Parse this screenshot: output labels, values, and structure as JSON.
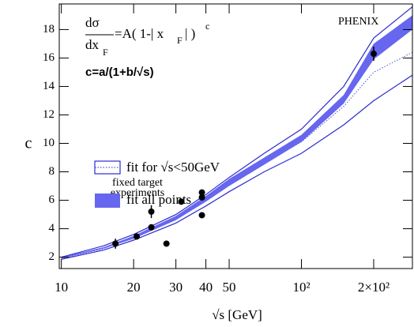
{
  "chart_data": {
    "type": "scatter",
    "log_x": true,
    "xlim": [
      9.8,
      290
    ],
    "ylim": [
      1.2,
      19.8
    ],
    "xticks": [
      10,
      20,
      30,
      40,
      50,
      {
        "value": 100,
        "label": "10²"
      },
      {
        "value": 200,
        "label": "2×10²"
      }
    ],
    "yticks": [
      2,
      4,
      6,
      8,
      10,
      12,
      14,
      16,
      18
    ],
    "x_label": "√s [GeV]",
    "y_label": "c",
    "formula": {
      "numerator": "dσ",
      "denominator": "dx",
      "denominator_sub": "F",
      "rhs": "=A( 1-| x",
      "rhs_sub": "F",
      "rhs_end": "| )",
      "exponent": "c"
    },
    "parametrization": "c=a/(1+b/√s)",
    "annotations": [
      "fixed target",
      "experiments",
      "PHENIX"
    ],
    "fits": [
      {
        "name": "fit for √s<50GeV",
        "style": "outline",
        "color": "#2b2bd0",
        "x": [
          10,
          15,
          20,
          30,
          40,
          50,
          70,
          100,
          150,
          200,
          290
        ],
        "low": [
          1.85,
          2.5,
          3.2,
          4.4,
          5.6,
          6.6,
          8.0,
          9.3,
          11.3,
          13.0,
          14.8
        ],
        "values": [
          1.9,
          2.6,
          3.4,
          4.7,
          6.0,
          7.1,
          8.6,
          10.1,
          12.6,
          15.0,
          16.4
        ],
        "high": [
          2.0,
          2.8,
          3.6,
          5.0,
          6.4,
          7.6,
          9.3,
          11.0,
          14.0,
          17.4,
          19.6
        ]
      },
      {
        "name": "fit all points",
        "style": "band",
        "color": "#6666ee",
        "x": [
          10,
          15,
          20,
          30,
          40,
          50,
          70,
          100,
          150,
          200,
          290
        ],
        "low": [
          1.9,
          2.6,
          3.3,
          4.6,
          5.9,
          7.0,
          8.5,
          10.1,
          12.8,
          15.9,
          18.0
        ],
        "high": [
          2.0,
          2.7,
          3.5,
          4.9,
          6.3,
          7.5,
          9.0,
          10.6,
          13.4,
          17.0,
          19.0
        ]
      }
    ],
    "points": {
      "color": "#000000",
      "x": [
        16.8,
        20.6,
        23.7,
        23.7,
        27.4,
        31.6,
        38.5,
        38.5,
        38.5,
        200
      ],
      "values": [
        2.95,
        3.45,
        5.2,
        4.1,
        2.95,
        5.9,
        6.55,
        6.2,
        4.95,
        16.3
      ],
      "errors": [
        0.35,
        null,
        0.45,
        null,
        null,
        null,
        null,
        null,
        null,
        0.5
      ]
    }
  }
}
